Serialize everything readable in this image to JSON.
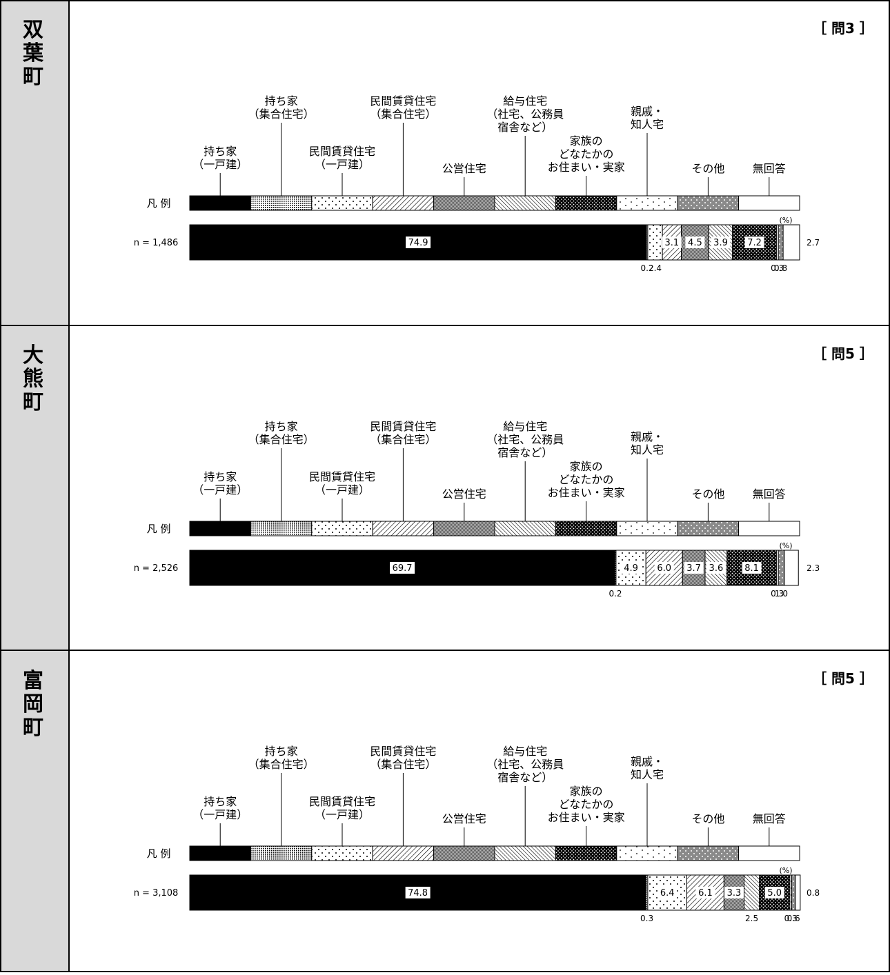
{
  "legend_label": "凡 例",
  "percent_mark": "(%)",
  "categories": [
    {
      "name": "持ち家（一戸建）",
      "lines": [
        "持ち家",
        "（一戸建）"
      ],
      "pattern": "solid"
    },
    {
      "name": "持ち家（集合住宅）",
      "lines": [
        "持ち家",
        "（集合住宅）"
      ],
      "pattern": "finedots"
    },
    {
      "name": "民間賃貸住宅（一戸建）",
      "lines": [
        "民間賃貸住宅",
        "（一戸建）"
      ],
      "pattern": "sparsedots"
    },
    {
      "name": "民間賃貸住宅（集合住宅）",
      "lines": [
        "民間賃貸住宅",
        "（集合住宅）"
      ],
      "pattern": "hatch"
    },
    {
      "name": "公営住宅",
      "lines": [
        "公営住宅"
      ],
      "pattern": "check"
    },
    {
      "name": "給与住宅（社宅、公務員宿舎など）",
      "lines": [
        "給与住宅",
        "（社宅、公務員",
        "宿舎など）"
      ],
      "pattern": "backhatch"
    },
    {
      "name": "家族のどなたかのお住まい・実家",
      "lines": [
        "家族の",
        "どなたかの",
        "お住まい・実家"
      ],
      "pattern": "darkdots"
    },
    {
      "name": "親戚・知人宅",
      "lines": [
        "親戚・",
        "知人宅"
      ],
      "pattern": "lightdots"
    },
    {
      "name": "その他",
      "lines": [
        "その他"
      ],
      "pattern": "graydots"
    },
    {
      "name": "無回答",
      "lines": [
        "無回答"
      ],
      "pattern": "blank"
    }
  ],
  "chart_data": [
    {
      "type": "bar",
      "stacked": "100%",
      "town": "双葉町",
      "question": "［ 問3 ］",
      "n_label": "n = 1,486",
      "values": [
        74.9,
        0.2,
        2.4,
        3.1,
        4.5,
        3.9,
        7.2,
        0.3,
        0.8,
        2.7
      ]
    },
    {
      "type": "bar",
      "stacked": "100%",
      "town": "大熊町",
      "question": "［ 問5 ］",
      "n_label": "n = 2,526",
      "values": [
        69.7,
        0.2,
        4.9,
        6.0,
        3.7,
        3.6,
        8.1,
        0.3,
        1.0,
        2.3
      ]
    },
    {
      "type": "bar",
      "stacked": "100%",
      "town": "富岡町",
      "question": "［ 問5 ］",
      "n_label": "n = 3,108",
      "values": [
        74.8,
        0.3,
        6.4,
        6.1,
        3.3,
        2.5,
        5.0,
        0.3,
        0.6,
        0.8
      ]
    }
  ]
}
